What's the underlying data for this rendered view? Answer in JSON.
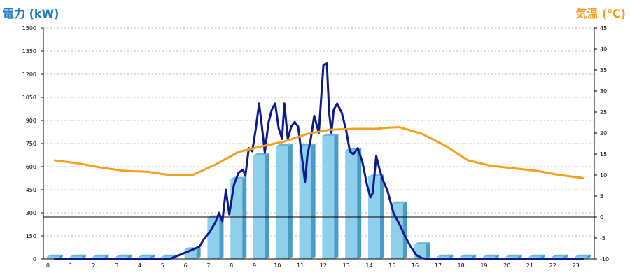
{
  "chart_data": {
    "type": "bar",
    "ylabel_left": "電力 (kW)",
    "ylabel_right": "気温 (℃)",
    "ylim_left": [
      0,
      1500
    ],
    "ylim_right": [
      -10,
      45
    ],
    "yticks_left": [
      "0",
      "150",
      "300",
      "450",
      "600",
      "750",
      "900",
      "1050",
      "1200",
      "1350",
      "1500"
    ],
    "yticks_right": [
      "-10",
      "-5",
      "0",
      "5",
      "10",
      "15",
      "20",
      "25",
      "30",
      "35",
      "40",
      "45"
    ],
    "categories": [
      "0",
      "1",
      "2",
      "3",
      "4",
      "5",
      "6",
      "7",
      "8",
      "9",
      "10",
      "11",
      "12",
      "13",
      "14",
      "15",
      "16",
      "17",
      "18",
      "19",
      "20",
      "21",
      "22",
      "23"
    ],
    "grid": true,
    "colors": {
      "left_axis_label": "#1a7fc2",
      "right_axis_label": "#f39c12",
      "bar_front": "#8ecfec",
      "bar_side": "#4a9cc4",
      "bar_top": "#6bb5da",
      "power_line": "#0d1a8c",
      "temperature_line": "#f5a01a",
      "zero_line": "#000000",
      "grid": "#bbbbbb"
    },
    "series": [
      {
        "kind": "bar",
        "axis": "left",
        "values": [
          15,
          15,
          15,
          15,
          15,
          15,
          62,
          270,
          520,
          675,
          735,
          735,
          800,
          705,
          535,
          360,
          95,
          15,
          15,
          15,
          15,
          15,
          15,
          15
        ]
      },
      {
        "kind": "line",
        "axis": "left",
        "x": [
          0,
          1,
          2,
          3,
          4,
          5,
          5.5,
          6,
          6.3,
          6.5,
          6.75,
          7,
          7.15,
          7.3,
          7.45,
          7.6,
          7.8,
          8,
          8.2,
          8.3,
          8.45,
          8.6,
          8.75,
          8.9,
          9,
          9.15,
          9.3,
          9.45,
          9.6,
          9.75,
          9.9,
          10,
          10.15,
          10.3,
          10.45,
          10.6,
          10.75,
          10.9,
          11,
          11.15,
          11.3,
          11.5,
          11.7,
          11.85,
          11.95,
          12.05,
          12.15,
          12.3,
          12.5,
          12.7,
          12.85,
          13,
          13.2,
          13.4,
          13.6,
          13.75,
          13.85,
          14,
          14.15,
          14.3,
          14.5,
          14.75,
          15,
          15.25,
          15.5,
          15.75,
          16,
          16.25,
          16.5,
          16.75,
          17,
          18,
          19,
          20,
          21,
          22,
          23
        ],
        "y": [
          0,
          0,
          0,
          0,
          0,
          0,
          30,
          60,
          80,
          130,
          175,
          240,
          300,
          245,
          450,
          290,
          480,
          560,
          580,
          540,
          720,
          700,
          840,
          1010,
          890,
          690,
          880,
          970,
          1010,
          850,
          780,
          1010,
          780,
          860,
          890,
          860,
          680,
          500,
          670,
          780,
          930,
          820,
          1260,
          1270,
          950,
          820,
          970,
          1010,
          950,
          830,
          700,
          680,
          720,
          630,
          480,
          400,
          430,
          670,
          580,
          510,
          440,
          300,
          230,
          150,
          80,
          25,
          5,
          0,
          0,
          0,
          0,
          0,
          0,
          0,
          0,
          0,
          0
        ]
      },
      {
        "kind": "line",
        "axis": "right",
        "x": [
          0,
          1,
          2,
          3,
          4,
          5,
          6,
          7,
          8,
          9,
          10,
          11,
          12,
          13,
          14,
          14.5,
          15,
          16,
          17,
          18,
          19,
          20,
          21,
          22,
          23
        ],
        "y": [
          13.5,
          12.8,
          11.8,
          11,
          10.8,
          10,
          10,
          12.5,
          15.5,
          16.8,
          18,
          19.8,
          20.8,
          21,
          21,
          21.3,
          21.4,
          19.8,
          17,
          13.5,
          12.2,
          11.6,
          11,
          10,
          9.3
        ]
      }
    ]
  }
}
